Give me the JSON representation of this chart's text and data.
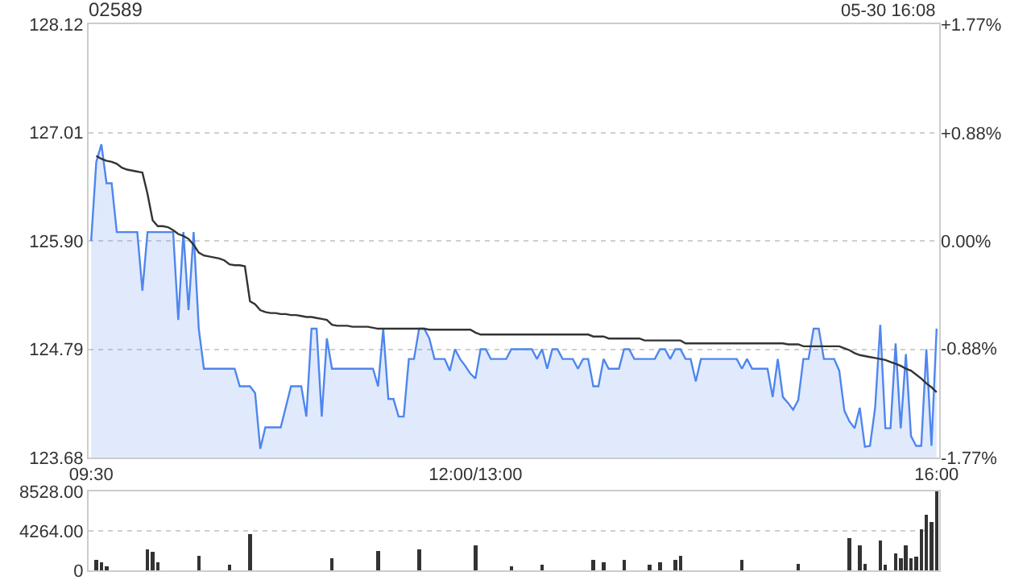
{
  "chart_data": [
    {
      "type": "line",
      "title": "02589",
      "annotations": [
        "05-30 16:08"
      ],
      "categories": [
        "09:30",
        null,
        null,
        null,
        null,
        null,
        null,
        null,
        null,
        null,
        null,
        null,
        null,
        null,
        null,
        null,
        null,
        null,
        null,
        null,
        null,
        null,
        null,
        null,
        null,
        null,
        null,
        null,
        null,
        null,
        null,
        null,
        null,
        null,
        null,
        null,
        null,
        null,
        null,
        null,
        null,
        null,
        null,
        null,
        null,
        null,
        null,
        null,
        null,
        null,
        null,
        null,
        null,
        null,
        null,
        null,
        null,
        null,
        null,
        null,
        null,
        null,
        null,
        null,
        null,
        null,
        null,
        null,
        null,
        null,
        null,
        null,
        null,
        null,
        null,
        "12:00/13:00",
        null,
        null,
        null,
        null,
        null,
        null,
        null,
        null,
        null,
        null,
        null,
        null,
        null,
        null,
        null,
        null,
        null,
        null,
        null,
        null,
        null,
        null,
        null,
        null,
        null,
        null,
        null,
        null,
        null,
        null,
        null,
        null,
        null,
        null,
        null,
        null,
        null,
        null,
        null,
        null,
        null,
        null,
        null,
        null,
        null,
        null,
        null,
        null,
        null,
        null,
        null,
        null,
        null,
        null,
        null,
        null,
        null,
        null,
        null,
        null,
        null,
        null,
        null,
        null,
        null,
        null,
        null,
        null,
        null,
        null,
        null,
        null,
        null,
        null,
        null,
        null,
        null,
        null,
        null,
        null,
        null,
        null,
        null,
        null,
        null,
        null,
        null,
        null,
        null,
        "16:00"
      ],
      "ylim": [
        123.68,
        128.12
      ],
      "yticks": [
        123.68,
        124.79,
        {
          "value": 125.9,
          "label": "125.90"
        },
        127.01,
        128.12
      ],
      "y2lim": [
        -1.77,
        1.77
      ],
      "y2ticks": [
        {
          "value": -1.77,
          "label": "-1.77%"
        },
        {
          "value": -0.88,
          "label": "-0.88%"
        },
        {
          "value": 0,
          "label": "0.00%"
        },
        {
          "value": 0.88,
          "label": "+0.88%"
        },
        {
          "value": 1.77,
          "label": "+1.77%"
        }
      ],
      "grid": "y",
      "series": [
        {
          "type": "area",
          "color": "#4f86ee",
          "values": [
            125.9,
            126.71,
            126.89,
            126.49,
            126.49,
            125.99,
            125.99,
            125.99,
            125.99,
            125.99,
            125.39,
            125.99,
            125.99,
            125.99,
            125.99,
            125.99,
            125.99,
            125.09,
            125.99,
            125.19,
            125.99,
            125.0,
            124.59,
            124.59,
            124.59,
            124.59,
            124.59,
            124.59,
            124.59,
            124.41,
            124.41,
            124.41,
            124.34,
            123.77,
            123.99,
            123.99,
            123.99,
            123.99,
            124.2,
            124.41,
            124.41,
            124.41,
            124.1,
            125.0,
            125.0,
            124.1,
            124.9,
            124.59,
            124.59,
            124.59,
            124.59,
            124.59,
            124.59,
            124.59,
            124.59,
            124.59,
            124.41,
            125.0,
            124.28,
            124.28,
            124.1,
            124.1,
            124.69,
            124.69,
            125.0,
            125.0,
            124.9,
            124.69,
            124.69,
            124.69,
            124.57,
            124.79,
            124.69,
            124.62,
            124.54,
            124.49,
            124.79,
            124.79,
            124.69,
            124.69,
            124.69,
            124.69,
            124.79,
            124.79,
            124.79,
            124.79,
            124.79,
            124.69,
            124.79,
            124.59,
            124.79,
            124.79,
            124.69,
            124.69,
            124.69,
            124.59,
            124.69,
            124.69,
            124.41,
            124.41,
            124.69,
            124.59,
            124.59,
            124.59,
            124.79,
            124.79,
            124.69,
            124.69,
            124.69,
            124.69,
            124.69,
            124.79,
            124.79,
            124.69,
            124.79,
            124.79,
            124.69,
            124.69,
            124.46,
            124.69,
            124.69,
            124.69,
            124.69,
            124.69,
            124.69,
            124.69,
            124.69,
            124.59,
            124.69,
            124.59,
            124.59,
            124.59,
            124.59,
            124.3,
            124.69,
            124.3,
            124.24,
            124.17,
            124.27,
            124.69,
            124.69,
            125.0,
            125.0,
            124.69,
            124.69,
            124.69,
            124.57,
            124.16,
            124.05,
            123.98,
            124.19,
            123.79,
            123.8,
            124.19,
            125.04,
            123.98,
            123.98,
            124.85,
            123.98,
            124.74,
            123.9,
            123.8,
            123.8,
            124.79,
            123.8,
            125.0
          ]
        },
        {
          "type": "line",
          "color": "#333333",
          "values": [
            null,
            126.77,
            126.74,
            126.72,
            126.71,
            126.69,
            126.65,
            126.63,
            126.62,
            126.61,
            126.6,
            126.38,
            126.11,
            126.05,
            126.05,
            126.04,
            126.01,
            125.97,
            125.95,
            125.92,
            125.86,
            125.78,
            125.75,
            125.74,
            125.73,
            125.72,
            125.7,
            125.66,
            125.65,
            125.65,
            125.64,
            125.28,
            125.25,
            125.19,
            125.17,
            125.16,
            125.16,
            125.15,
            125.15,
            125.14,
            125.14,
            125.13,
            125.12,
            125.12,
            125.11,
            125.1,
            125.09,
            125.04,
            125.03,
            125.03,
            125.03,
            125.02,
            125.02,
            125.02,
            125.02,
            125.01,
            125.0,
            125.0,
            125.0,
            125.0,
            125.0,
            125.0,
            125.0,
            125.0,
            125.0,
            125.0,
            124.99,
            124.99,
            124.99,
            124.99,
            124.99,
            124.99,
            124.99,
            124.99,
            124.99,
            124.96,
            124.94,
            124.94,
            124.94,
            124.94,
            124.94,
            124.94,
            124.94,
            124.94,
            124.94,
            124.94,
            124.94,
            124.94,
            124.94,
            124.94,
            124.94,
            124.94,
            124.94,
            124.94,
            124.94,
            124.94,
            124.94,
            124.94,
            124.92,
            124.92,
            124.92,
            124.9,
            124.9,
            124.9,
            124.9,
            124.9,
            124.9,
            124.9,
            124.88,
            124.88,
            124.88,
            124.88,
            124.88,
            124.88,
            124.88,
            124.88,
            124.85,
            124.85,
            124.85,
            124.85,
            124.85,
            124.85,
            124.85,
            124.85,
            124.85,
            124.85,
            124.85,
            124.85,
            124.85,
            124.85,
            124.85,
            124.85,
            124.85,
            124.85,
            124.85,
            124.85,
            124.84,
            124.84,
            124.84,
            124.82,
            124.82,
            124.82,
            124.82,
            124.82,
            124.82,
            124.82,
            124.82,
            124.8,
            124.78,
            124.75,
            124.73,
            124.72,
            124.71,
            124.7,
            124.69,
            124.68,
            124.66,
            124.64,
            124.62,
            124.59,
            124.57,
            124.53,
            124.49,
            124.44,
            124.4,
            124.35
          ]
        }
      ]
    },
    {
      "type": "bar",
      "color": "#333333",
      "tick_labels": "y",
      "categories": [
        null,
        null,
        null,
        null,
        null,
        null,
        null,
        null,
        null,
        null,
        null,
        null,
        null,
        null,
        null,
        null,
        null,
        null,
        null,
        null,
        null,
        null,
        null,
        null,
        null,
        null,
        null,
        null,
        null,
        null,
        null,
        null,
        null,
        null,
        null,
        null,
        null,
        null,
        null,
        null,
        null,
        null,
        null,
        null,
        null,
        null,
        null,
        null,
        null,
        null,
        null,
        null,
        null,
        null,
        null,
        null,
        null,
        null,
        null,
        null,
        null,
        null,
        null,
        null,
        null,
        null,
        null,
        null,
        null,
        null,
        null,
        null,
        null,
        null,
        null,
        null,
        null,
        null,
        null,
        null,
        null,
        null,
        null,
        null,
        null,
        null,
        null,
        null,
        null,
        null,
        null,
        null,
        null,
        null,
        null,
        null,
        null,
        null,
        null,
        null,
        null,
        null,
        null,
        null,
        null,
        null,
        null,
        null,
        null,
        null,
        null,
        null,
        null,
        null,
        null,
        null,
        null,
        null,
        null,
        null,
        null,
        null,
        null,
        null,
        null,
        null,
        null,
        null,
        null,
        null,
        null,
        null,
        null,
        null,
        null,
        null,
        null,
        null,
        null,
        null,
        null,
        null,
        null,
        null,
        null,
        null,
        null,
        null,
        null,
        null,
        null,
        null,
        null,
        null,
        null,
        null,
        null,
        null,
        null,
        null,
        null,
        null,
        null,
        null,
        null,
        null
      ],
      "ylim": [
        0,
        8528
      ],
      "yticks": [
        0,
        {
          "value": 4264,
          "label": "4264.00"
        },
        {
          "value": 8528,
          "label": "8528.00"
        }
      ],
      "grid": "y",
      "values": [
        null,
        1100,
        900,
        400,
        null,
        null,
        null,
        null,
        null,
        null,
        null,
        2300,
        2000,
        900,
        null,
        null,
        null,
        null,
        null,
        null,
        null,
        1600,
        null,
        null,
        null,
        null,
        null,
        600,
        null,
        null,
        null,
        3900,
        null,
        null,
        null,
        null,
        null,
        null,
        null,
        null,
        null,
        null,
        null,
        null,
        null,
        null,
        null,
        1300,
        null,
        null,
        null,
        null,
        null,
        null,
        null,
        null,
        2100,
        null,
        null,
        null,
        null,
        null,
        null,
        null,
        2300,
        null,
        null,
        null,
        null,
        null,
        null,
        null,
        null,
        null,
        null,
        2700,
        null,
        null,
        null,
        null,
        null,
        null,
        400,
        null,
        null,
        null,
        null,
        null,
        600,
        null,
        null,
        null,
        null,
        null,
        null,
        null,
        null,
        null,
        1100,
        null,
        900,
        null,
        null,
        null,
        1100,
        null,
        null,
        null,
        null,
        600,
        null,
        900,
        null,
        null,
        1100,
        1600,
        null,
        null,
        null,
        null,
        null,
        null,
        null,
        null,
        null,
        null,
        null,
        1100,
        null,
        null,
        null,
        null,
        null,
        null,
        null,
        null,
        null,
        null,
        700,
        null,
        null,
        null,
        null,
        null,
        null,
        null,
        null,
        null,
        3500,
        null,
        2700,
        700,
        null,
        null,
        3200,
        600,
        null,
        1800,
        1300,
        2700,
        1300,
        1500,
        4400,
        6000,
        5200,
        8500
      ]
    }
  ]
}
